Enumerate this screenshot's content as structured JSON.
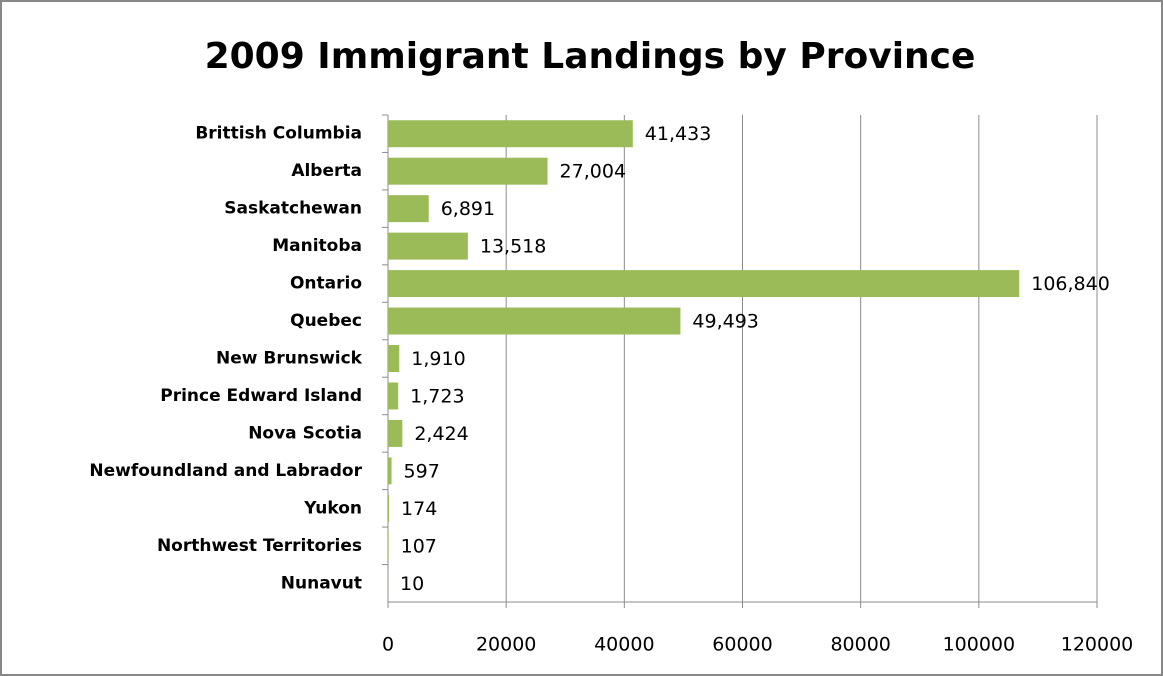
{
  "chart_data": {
    "type": "bar",
    "orientation": "horizontal",
    "title": "2009 Immigrant Landings by Province",
    "categories": [
      "Brittish Columbia",
      "Alberta",
      "Saskatchewan",
      "Manitoba",
      "Ontario",
      "Quebec",
      "New Brunswick",
      "Prince Edward Island",
      "Nova Scotia",
      "Newfoundland and Labrador",
      "Yukon",
      "Northwest Territories",
      "Nunavut"
    ],
    "values": [
      41433,
      27004,
      6891,
      13518,
      106840,
      49493,
      1910,
      1723,
      2424,
      597,
      174,
      107,
      10
    ],
    "value_labels": [
      "41,433",
      "27,004",
      "6,891",
      "13,518",
      "106,840",
      "49,493",
      "1,910",
      "1,723",
      "2,424",
      "597",
      "174",
      "107",
      "10"
    ],
    "color": "#9bbb59",
    "xlim": [
      0,
      120000
    ],
    "xticks": [
      0,
      20000,
      40000,
      60000,
      80000,
      100000,
      120000
    ],
    "grid": true
  }
}
